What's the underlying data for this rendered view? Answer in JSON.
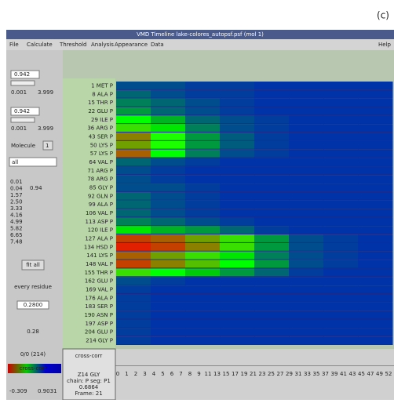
{
  "corner_label": "(c)",
  "window": {
    "title": "VMD Timeline  lake-colores_autopsf.psf (mol 1)",
    "menu": [
      "File",
      "Calculate",
      "Threshold",
      "Analysis",
      "Appearance",
      "Data"
    ],
    "help": "Help"
  },
  "left_panel": {
    "slider1": {
      "value": "0.942",
      "min": "0.001",
      "max": "3.999"
    },
    "slider2": {
      "value": "0.942",
      "min": "0.001",
      "max": "3.999"
    },
    "molecule_label": "Molecule",
    "molecule": "1",
    "selection": "all",
    "levels": [
      "0.01",
      "0.04",
      "1.57",
      "2.50",
      "3.33",
      "4.16",
      "4.99",
      "5.82",
      "6.65",
      "7.48"
    ],
    "level_value": "0.94",
    "fit_button": "fit all",
    "residue_mode": "every residue",
    "field1": "0.2800",
    "field2": "0.28",
    "count": "0/0 (214)",
    "scale_name": "cross-corr",
    "scale_min": "-0.309",
    "scale_max": "0.9031"
  },
  "info": {
    "measure": "cross-corr",
    "residue": "Z14 GLY",
    "chain": "chain: P seg: P1",
    "value": "0.6864",
    "frame": "Frame: 21"
  },
  "frame_axis": [
    "0",
    "1",
    "2",
    "3",
    "4",
    "5",
    "6",
    "7",
    "8",
    "9",
    "11",
    "13",
    "15",
    "17",
    "19",
    "21",
    "23",
    "25",
    "27",
    "29",
    "31",
    "33",
    "35",
    "37",
    "39",
    "41",
    "43",
    "45",
    "47",
    "49",
    "52"
  ],
  "heatmap": {
    "rows": [
      "1 MET P",
      "8 ALA P",
      "15 THR P",
      "22 GLU P",
      "29 ILE P",
      "36 ARG P",
      "43 SER P",
      "50 LYS P",
      "57 LYS P",
      "64 VAL P",
      "71 ARG P",
      "78 ARG P",
      "85 GLY P",
      "92 GLN P",
      "99 ALA P",
      "106 VAL P",
      "113 ASP P",
      "120 ILE P",
      "127 ALA P",
      "134 HSD P",
      "141 LYS P",
      "148 VAL P",
      "155 THR P",
      "162 GLU P",
      "169 VAL P",
      "176 ALA P",
      "183 SER P",
      "190 ASN P",
      "197 ASP P",
      "204 GLU P",
      "214 GLY P"
    ],
    "values": [
      [
        0.15,
        0.15,
        0.12,
        0.12,
        0.1,
        0.1,
        0.1,
        0.1
      ],
      [
        0.2,
        0.15,
        0.12,
        0.12,
        0.1,
        0.1,
        0.1,
        0.1
      ],
      [
        0.25,
        0.2,
        0.15,
        0.12,
        0.1,
        0.1,
        0.1,
        0.1
      ],
      [
        0.3,
        0.2,
        0.15,
        0.12,
        0.1,
        0.1,
        0.1,
        0.1
      ],
      [
        0.5,
        0.35,
        0.2,
        0.15,
        0.12,
        0.1,
        0.1,
        0.1
      ],
      [
        0.6,
        0.45,
        0.25,
        0.15,
        0.12,
        0.1,
        0.1,
        0.1
      ],
      [
        0.75,
        0.55,
        0.3,
        0.18,
        0.12,
        0.1,
        0.1,
        0.1
      ],
      [
        0.7,
        0.55,
        0.3,
        0.18,
        0.12,
        0.1,
        0.1,
        0.1
      ],
      [
        0.8,
        0.5,
        0.25,
        0.15,
        0.12,
        0.1,
        0.1,
        0.1
      ],
      [
        0.2,
        0.15,
        0.12,
        0.1,
        0.1,
        0.1,
        0.1,
        0.1
      ],
      [
        0.15,
        0.12,
        0.1,
        0.1,
        0.1,
        0.1,
        0.1,
        0.1
      ],
      [
        0.15,
        0.12,
        0.1,
        0.1,
        0.1,
        0.1,
        0.1,
        0.1
      ],
      [
        0.15,
        0.15,
        0.12,
        0.1,
        0.1,
        0.1,
        0.1,
        0.1
      ],
      [
        0.2,
        0.15,
        0.12,
        0.1,
        0.1,
        0.1,
        0.1,
        0.1
      ],
      [
        0.2,
        0.15,
        0.12,
        0.1,
        0.1,
        0.1,
        0.1,
        0.1
      ],
      [
        0.2,
        0.15,
        0.12,
        0.1,
        0.1,
        0.1,
        0.1,
        0.1
      ],
      [
        0.25,
        0.2,
        0.15,
        0.12,
        0.1,
        0.1,
        0.1,
        0.1
      ],
      [
        0.45,
        0.35,
        0.3,
        0.2,
        0.12,
        0.1,
        0.1,
        0.1
      ],
      [
        0.85,
        0.8,
        0.7,
        0.6,
        0.3,
        0.15,
        0.12,
        0.1
      ],
      [
        0.9,
        0.85,
        0.75,
        0.6,
        0.3,
        0.15,
        0.12,
        0.1
      ],
      [
        0.8,
        0.7,
        0.6,
        0.45,
        0.25,
        0.15,
        0.12,
        0.1
      ],
      [
        0.85,
        0.75,
        0.65,
        0.5,
        0.3,
        0.15,
        0.12,
        0.1
      ],
      [
        0.6,
        0.5,
        0.4,
        0.3,
        0.2,
        0.12,
        0.1,
        0.1
      ],
      [
        0.15,
        0.12,
        0.1,
        0.1,
        0.1,
        0.1,
        0.1,
        0.1
      ],
      [
        0.12,
        0.1,
        0.1,
        0.1,
        0.1,
        0.1,
        0.1,
        0.1
      ],
      [
        0.12,
        0.1,
        0.1,
        0.1,
        0.1,
        0.1,
        0.1,
        0.1
      ],
      [
        0.12,
        0.1,
        0.1,
        0.1,
        0.1,
        0.1,
        0.1,
        0.1
      ],
      [
        0.12,
        0.1,
        0.1,
        0.1,
        0.1,
        0.1,
        0.1,
        0.1
      ],
      [
        0.12,
        0.1,
        0.1,
        0.1,
        0.1,
        0.1,
        0.1,
        0.1
      ],
      [
        0.12,
        0.1,
        0.1,
        0.1,
        0.1,
        0.1,
        0.1,
        0.1
      ],
      [
        0.12,
        0.1,
        0.1,
        0.1,
        0.1,
        0.1,
        0.1,
        0.1
      ]
    ]
  }
}
